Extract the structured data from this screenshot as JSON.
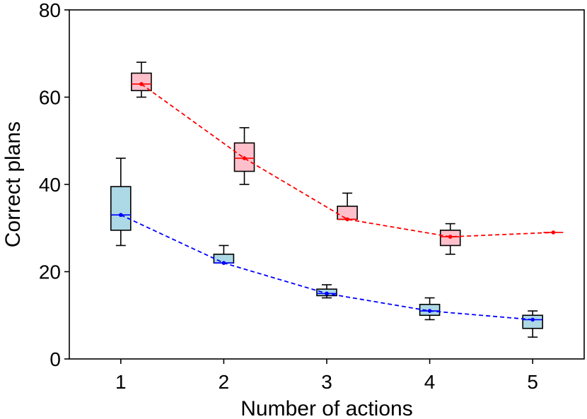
{
  "chart_data": {
    "type": "box",
    "title": "",
    "xlabel": "Number of actions",
    "ylabel": "Correct plans",
    "xlim": [
      0.5,
      5.5
    ],
    "ylim": [
      0,
      80
    ],
    "x_ticks": [
      1,
      2,
      3,
      4,
      5
    ],
    "y_ticks": [
      0,
      20,
      40,
      60,
      80
    ],
    "grid": false,
    "legend": "none",
    "series": [
      {
        "name": "blue",
        "color": "#0000ff",
        "box_fill": "#add8e6",
        "offset": 0.0,
        "boxes": [
          {
            "x": 1,
            "whisker_low": 26,
            "q1": 29.5,
            "median": 33,
            "q3": 39.5,
            "whisker_high": 46
          },
          {
            "x": 2,
            "whisker_low": 22,
            "q1": 22,
            "median": 22,
            "q3": 24,
            "whisker_high": 26
          },
          {
            "x": 3,
            "whisker_low": 14,
            "q1": 14.5,
            "median": 15,
            "q3": 16,
            "whisker_high": 17
          },
          {
            "x": 4,
            "whisker_low": 9,
            "q1": 10,
            "median": 11,
            "q3": 12.5,
            "whisker_high": 14
          },
          {
            "x": 5,
            "whisker_low": 5,
            "q1": 7,
            "median": 9,
            "q3": 10,
            "whisker_high": 11
          }
        ],
        "line": [
          {
            "x": 1,
            "y": 33
          },
          {
            "x": 2,
            "y": 22
          },
          {
            "x": 3,
            "y": 15
          },
          {
            "x": 4,
            "y": 11
          },
          {
            "x": 5,
            "y": 9
          }
        ]
      },
      {
        "name": "red",
        "color": "#ff0000",
        "box_fill": "#ffc0cb",
        "offset": 0.2,
        "boxes": [
          {
            "x": 1,
            "whisker_low": 60,
            "q1": 61.5,
            "median": 63,
            "q3": 65.5,
            "whisker_high": 68
          },
          {
            "x": 2,
            "whisker_low": 40,
            "q1": 43,
            "median": 46,
            "q3": 49.5,
            "whisker_high": 53
          },
          {
            "x": 3,
            "whisker_low": 32,
            "q1": 32,
            "median": 32,
            "q3": 35,
            "whisker_high": 38
          },
          {
            "x": 4,
            "whisker_low": 24,
            "q1": 26,
            "median": 28,
            "q3": 29.5,
            "whisker_high": 31
          }
        ],
        "line": [
          {
            "x": 1,
            "y": 63
          },
          {
            "x": 2,
            "y": 46
          },
          {
            "x": 3,
            "y": 32
          },
          {
            "x": 4,
            "y": 28
          },
          {
            "x": 5,
            "y": 29
          }
        ]
      }
    ]
  }
}
